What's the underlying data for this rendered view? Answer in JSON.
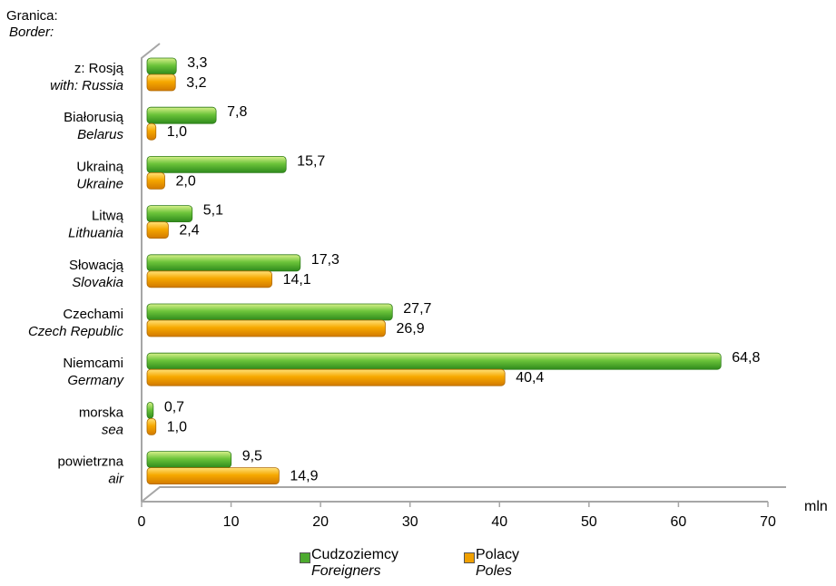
{
  "chart_data": {
    "type": "bar",
    "orientation": "horizontal",
    "y_title": {
      "pl": "Granica:",
      "en": "Border:"
    },
    "unit_label": "mln",
    "categories": [
      {
        "pl": "z: Rosją",
        "en": "with: Russia"
      },
      {
        "pl": "Białorusią",
        "en": "Belarus"
      },
      {
        "pl": "Ukrainą",
        "en": "Ukraine"
      },
      {
        "pl": "Litwą",
        "en": "Lithuania"
      },
      {
        "pl": "Słowacją",
        "en": "Slovakia"
      },
      {
        "pl": "Czechami",
        "en": "Czech Republic"
      },
      {
        "pl": "Niemcami",
        "en": "Germany"
      },
      {
        "pl": "morska",
        "en": "sea"
      },
      {
        "pl": "powietrzna",
        "en": "air"
      }
    ],
    "series": [
      {
        "name_pl": "Cudzoziemcy",
        "name_en": "Foreigners",
        "color": "#4daa2f",
        "values": [
          3.3,
          7.8,
          15.7,
          5.1,
          17.3,
          27.7,
          64.8,
          0.7,
          9.5
        ],
        "labels": [
          "3,3",
          "7,8",
          "15,7",
          "5,1",
          "17,3",
          "27,7",
          "64,8",
          "0,7",
          "9,5"
        ]
      },
      {
        "name_pl": "Polacy",
        "name_en": "Poles",
        "color": "#f0a000",
        "values": [
          3.2,
          1.0,
          2.0,
          2.4,
          14.1,
          26.9,
          40.4,
          1.0,
          14.9
        ],
        "labels": [
          "3,2",
          "1,0",
          "2,0",
          "2,4",
          "14,1",
          "26,9",
          "40,4",
          "1,0",
          "14,9"
        ]
      }
    ],
    "xlim": [
      0,
      70
    ],
    "xticks": [
      0,
      10,
      20,
      30,
      40,
      50,
      60,
      70
    ],
    "grid": false,
    "legend_position": "bottom"
  }
}
